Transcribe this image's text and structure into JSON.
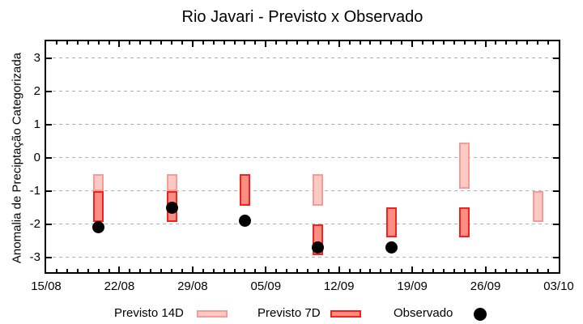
{
  "chart_data": {
    "type": "bar",
    "subtype": "range-bars-with-points",
    "title": "Rio Javari - Previsto x Observado",
    "ylabel": "Anomalia de Preciptação Categorizada",
    "xlabel": "",
    "y_axis": {
      "ticks": [
        3,
        2,
        1,
        0,
        -1,
        -2,
        -3
      ],
      "range": [
        -3.5,
        3.5
      ],
      "grid": "dashed-horizontal"
    },
    "x_axis": {
      "unit": "days-from-start",
      "range_days": [
        0,
        49
      ],
      "minor_tick_every_days": 1,
      "major_ticks": [
        {
          "day": 0,
          "label": "15/08"
        },
        {
          "day": 7,
          "label": "22/08"
        },
        {
          "day": 14,
          "label": "29/08"
        },
        {
          "day": 21,
          "label": "05/09"
        },
        {
          "day": 28,
          "label": "12/09"
        },
        {
          "day": 35,
          "label": "19/09"
        },
        {
          "day": 42,
          "label": "26/09"
        },
        {
          "day": 49,
          "label": "03/10"
        }
      ]
    },
    "series": [
      {
        "name": "Previsto 14D",
        "type": "range-bar",
        "key": "p14"
      },
      {
        "name": "Previsto 7D",
        "type": "range-bar",
        "key": "p7"
      },
      {
        "name": "Observado",
        "type": "point",
        "key": "obs"
      }
    ],
    "groups": [
      {
        "day": 5,
        "p14": [
          -0.5,
          -1.0
        ],
        "p7": [
          -1.0,
          -1.95
        ],
        "obs": -2.1
      },
      {
        "day": 12,
        "p14": [
          -0.5,
          -1.0
        ],
        "p7": [
          -1.0,
          -1.95
        ],
        "obs": -1.5
      },
      {
        "day": 19,
        "p14": null,
        "p7": [
          -0.5,
          -1.45
        ],
        "obs": -1.9
      },
      {
        "day": 26,
        "p14": [
          -0.5,
          -1.45
        ],
        "p7": [
          -2.0,
          -2.95
        ],
        "obs": -2.7
      },
      {
        "day": 33,
        "p14": null,
        "p7": [
          -1.5,
          -2.4
        ],
        "obs": -2.7
      },
      {
        "day": 40,
        "p14": [
          0.45,
          -0.95
        ],
        "p7": [
          -1.5,
          -2.4
        ],
        "obs": null
      },
      {
        "day": 47,
        "p14": [
          -1.0,
          -1.95
        ],
        "p7": null,
        "obs": null
      }
    ],
    "legend": [
      {
        "label": "Previsto 14D",
        "swatch": "light-range-bar"
      },
      {
        "label": "Previsto 7D",
        "swatch": "dark-range-bar"
      },
      {
        "label": "Observado",
        "swatch": "black-dot"
      }
    ],
    "legend_position": "bottom",
    "colors": {
      "p14_fill": "#fccac4",
      "p14_border": "#f49c95",
      "p7_fill": "#fa8e85",
      "p7_border": "#f5211b",
      "obs": "#000000",
      "grid": "#b0b0b0"
    }
  }
}
